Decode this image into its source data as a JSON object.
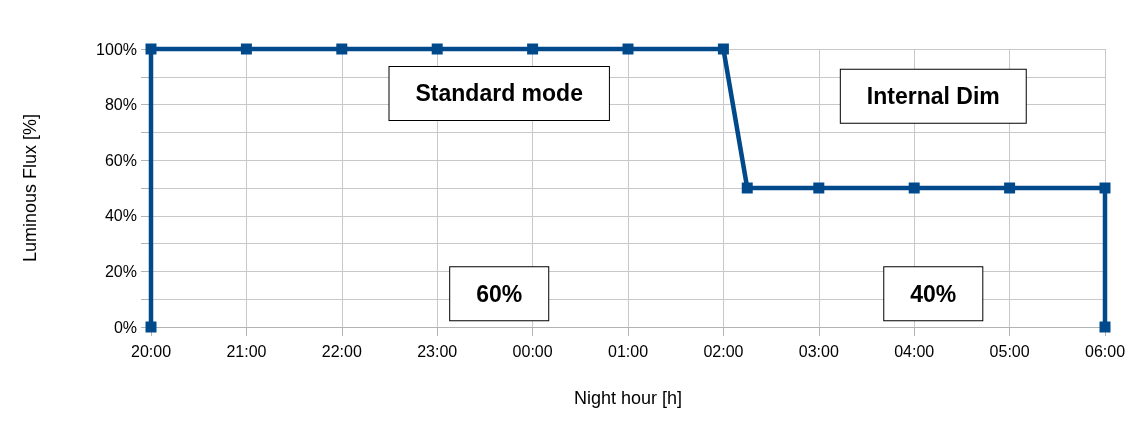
{
  "chart_data": {
    "type": "line",
    "xlabel": "Night hour [h]",
    "ylabel": "Luminous Flux [%]",
    "x": [
      "2000-01-01T20:00",
      "2000-01-01T20:00",
      "2000-01-01T21:00",
      "2000-01-01T22:00",
      "2000-01-01T23:00",
      "2000-01-02T00:00",
      "2000-01-02T01:00",
      "2000-01-02T02:00",
      "2000-01-02T02:15",
      "2000-01-02T03:00",
      "2000-01-02T04:00",
      "2000-01-02T05:00",
      "2000-01-02T06:00",
      "2000-01-02T06:00"
    ],
    "series": [
      {
        "color": "#004a8c",
        "values": [
          0,
          100,
          100,
          100,
          100,
          100,
          100,
          100,
          50,
          50,
          50,
          50,
          50,
          0
        ]
      }
    ],
    "xlim": [
      "2000-01-01T20:00",
      "2000-01-02T06:00"
    ],
    "xticks": [
      {
        "value": "2000-01-01T20:00",
        "label": "20:00"
      },
      {
        "value": "2000-01-01T21:00",
        "label": "21:00"
      },
      {
        "value": "2000-01-01T22:00",
        "label": "22:00"
      },
      {
        "value": "2000-01-01T23:00",
        "label": "23:00"
      },
      {
        "value": "2000-01-02T00:00",
        "label": "00:00"
      },
      {
        "value": "2000-01-02T01:00",
        "label": "01:00"
      },
      {
        "value": "2000-01-02T02:00",
        "label": "02:00"
      },
      {
        "value": "2000-01-02T03:00",
        "label": "03:00"
      },
      {
        "value": "2000-01-02T04:00",
        "label": "04:00"
      },
      {
        "value": "2000-01-02T05:00",
        "label": "05:00"
      },
      {
        "value": "2000-01-02T06:00",
        "label": "06:00"
      }
    ],
    "ylim": [
      0,
      100
    ],
    "yticks": [
      {
        "value": 0,
        "label": "0%"
      },
      {
        "value": 10,
        "label": null
      },
      {
        "value": 20,
        "label": "20%"
      },
      {
        "value": 30,
        "label": null
      },
      {
        "value": 40,
        "label": "40%"
      },
      {
        "value": 50,
        "label": null
      },
      {
        "value": 60,
        "label": "60%"
      },
      {
        "value": 70,
        "label": null
      },
      {
        "value": 80,
        "label": "80%"
      },
      {
        "value": 90,
        "label": null
      },
      {
        "value": 100,
        "label": "100%"
      }
    ],
    "annotations": [
      "Standard mode",
      "Internal Dim",
      "60%",
      "40%"
    ],
    "grid": true,
    "marker": "square",
    "line_style": "solid"
  }
}
